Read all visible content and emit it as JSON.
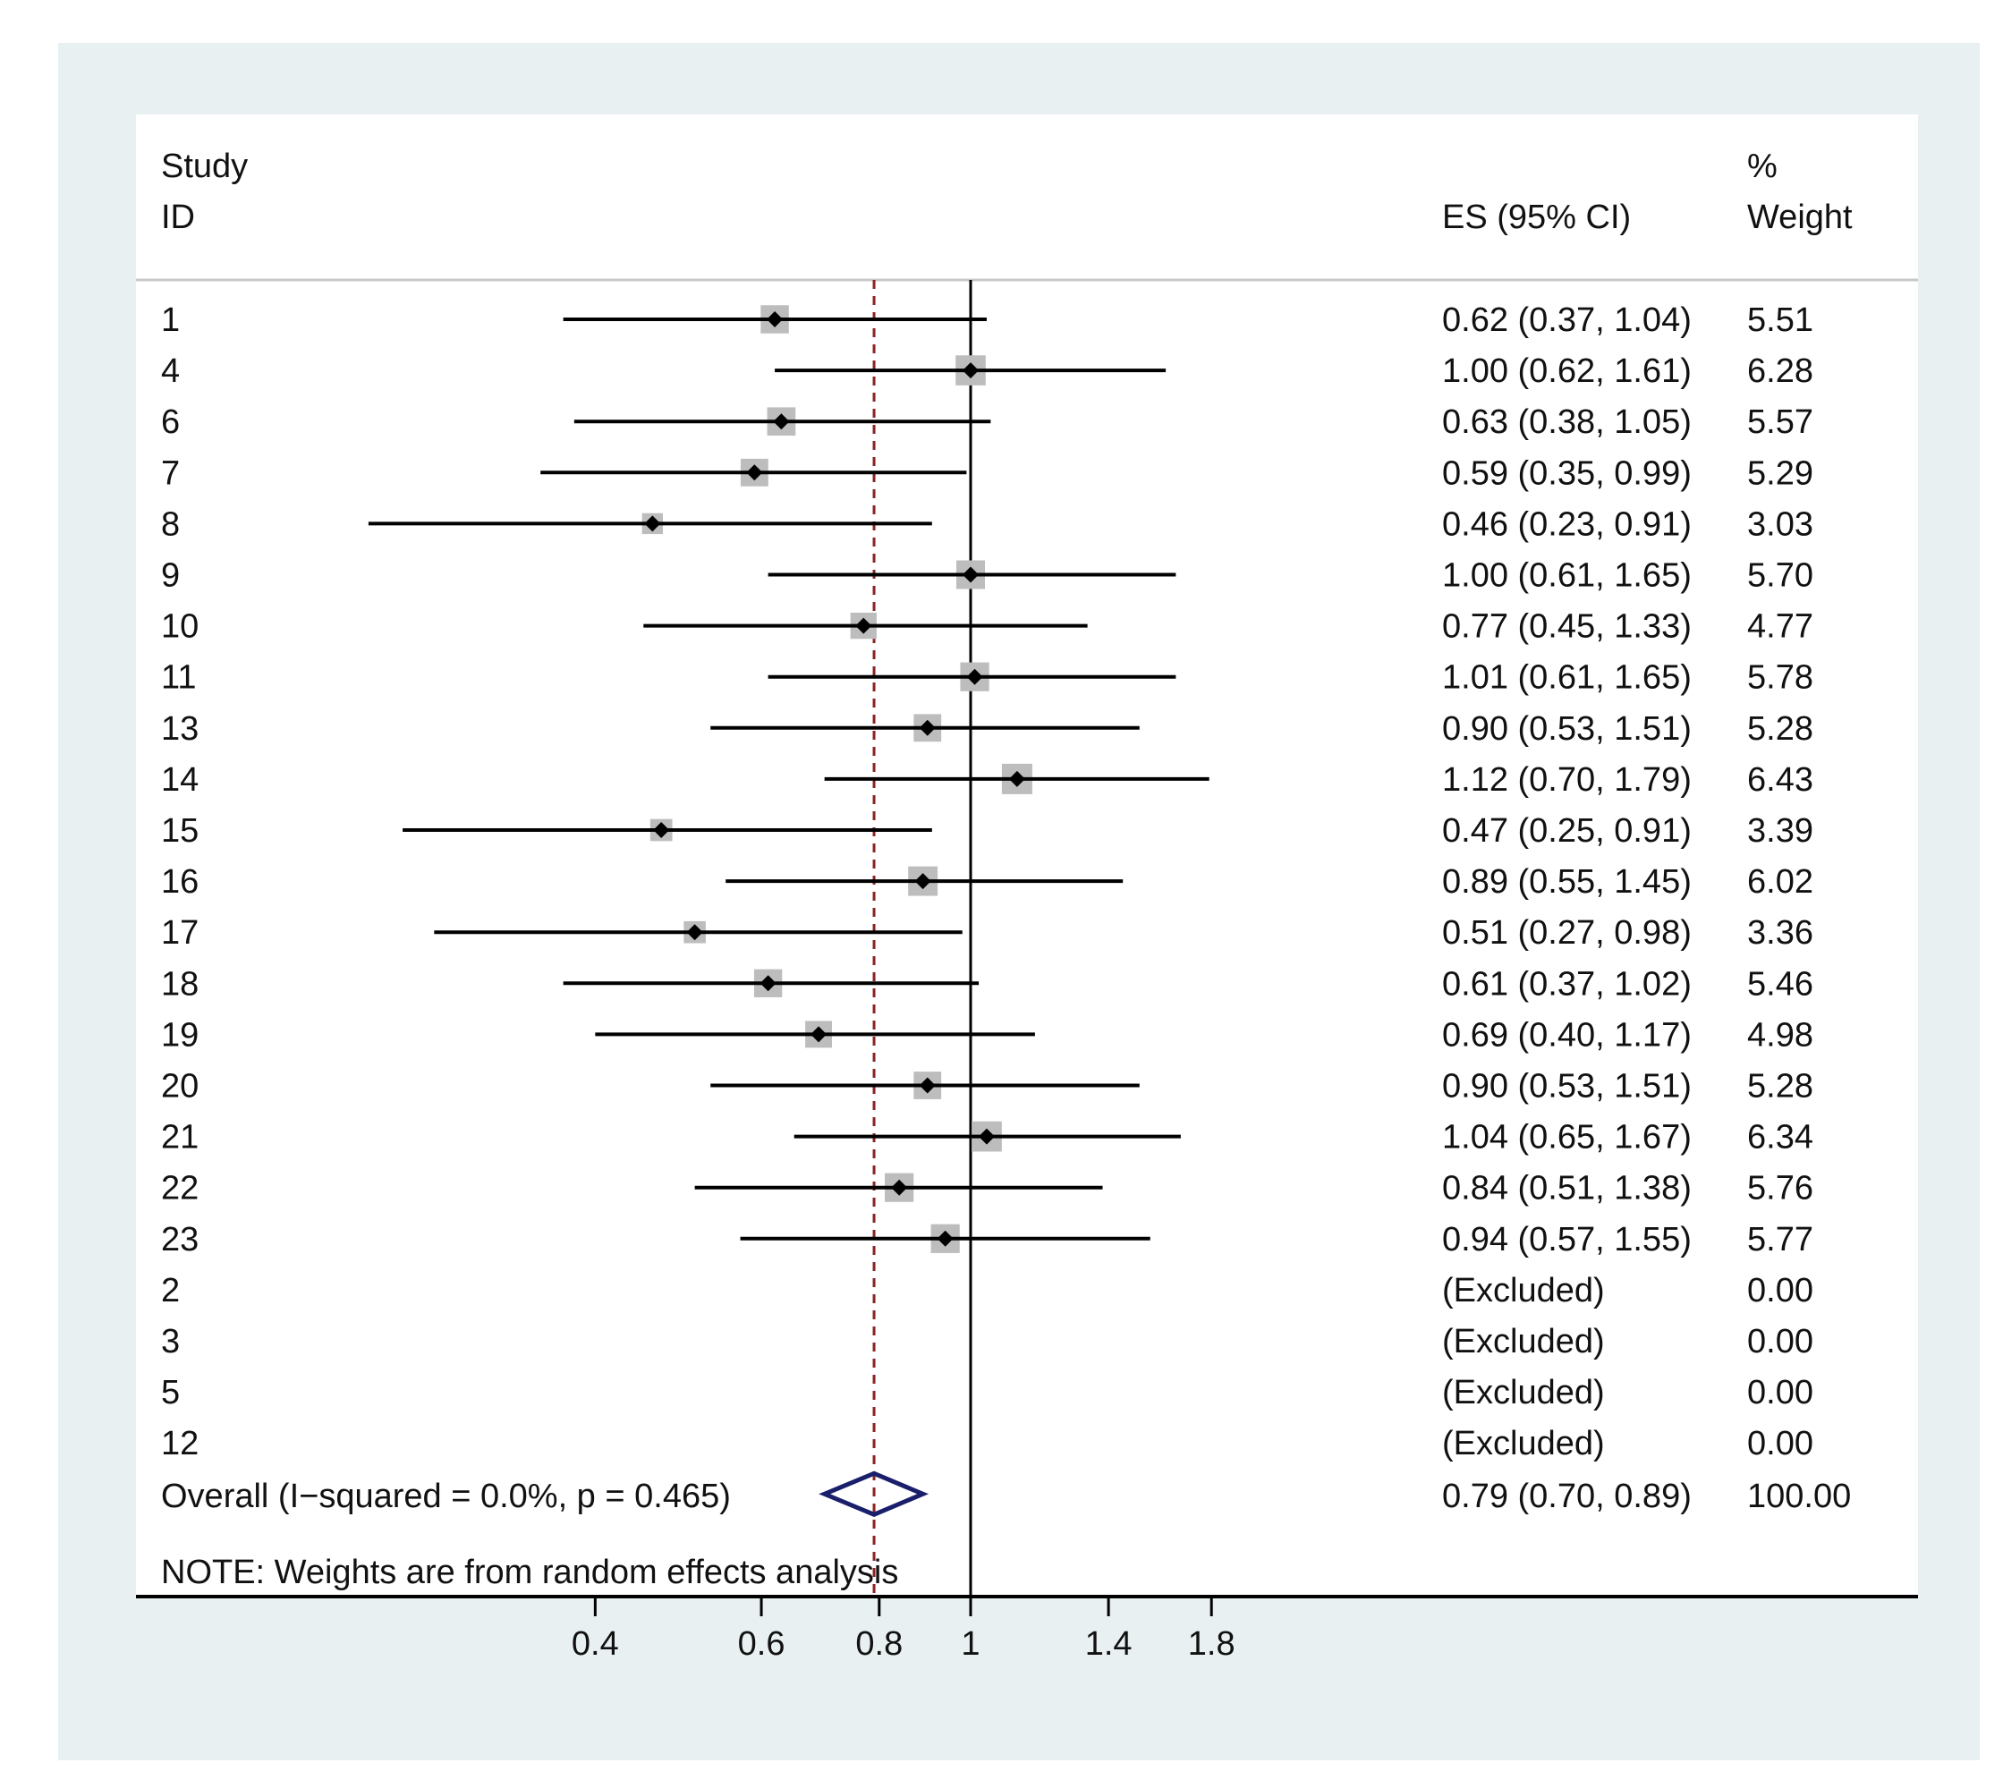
{
  "colors": {
    "outer_bg": "#e9f0f2",
    "plot_bg": "#ffffff",
    "box": "#bdbdbd",
    "point": "#000000",
    "ci": "#000000",
    "overall_diamond": "#1a1f6b",
    "overall_line": "#8b2323",
    "separator": "#c8c8c8"
  },
  "chart_data": {
    "type": "forest",
    "scale": "log",
    "headers": {
      "study_line1": "Study",
      "study_line2": "ID",
      "es": "ES (95% CI)",
      "weight_line1": "%",
      "weight_line2": "Weight"
    },
    "null_value": 1,
    "x_ticks": [
      {
        "value": 0.4,
        "label": "0.4"
      },
      {
        "value": 0.6,
        "label": "0.6"
      },
      {
        "value": 0.8,
        "label": "0.8"
      },
      {
        "value": 1,
        "label": "1"
      },
      {
        "value": 1.4,
        "label": "1.4"
      },
      {
        "value": 1.8,
        "label": "1.8"
      }
    ],
    "studies": [
      {
        "id": "1",
        "es": 0.62,
        "lo": 0.37,
        "hi": 1.04,
        "es_text": "0.62 (0.37, 1.04)",
        "weight": 5.51,
        "weight_text": "5.51"
      },
      {
        "id": "4",
        "es": 1.0,
        "lo": 0.62,
        "hi": 1.61,
        "es_text": "1.00 (0.62, 1.61)",
        "weight": 6.28,
        "weight_text": "6.28"
      },
      {
        "id": "6",
        "es": 0.63,
        "lo": 0.38,
        "hi": 1.05,
        "es_text": "0.63 (0.38, 1.05)",
        "weight": 5.57,
        "weight_text": "5.57"
      },
      {
        "id": "7",
        "es": 0.59,
        "lo": 0.35,
        "hi": 0.99,
        "es_text": "0.59 (0.35, 0.99)",
        "weight": 5.29,
        "weight_text": "5.29"
      },
      {
        "id": "8",
        "es": 0.46,
        "lo": 0.23,
        "hi": 0.91,
        "es_text": "0.46 (0.23, 0.91)",
        "weight": 3.03,
        "weight_text": "3.03"
      },
      {
        "id": "9",
        "es": 1.0,
        "lo": 0.61,
        "hi": 1.65,
        "es_text": "1.00 (0.61, 1.65)",
        "weight": 5.7,
        "weight_text": "5.70"
      },
      {
        "id": "10",
        "es": 0.77,
        "lo": 0.45,
        "hi": 1.33,
        "es_text": "0.77 (0.45, 1.33)",
        "weight": 4.77,
        "weight_text": "4.77"
      },
      {
        "id": "11",
        "es": 1.01,
        "lo": 0.61,
        "hi": 1.65,
        "es_text": "1.01 (0.61, 1.65)",
        "weight": 5.78,
        "weight_text": "5.78"
      },
      {
        "id": "13",
        "es": 0.9,
        "lo": 0.53,
        "hi": 1.51,
        "es_text": "0.90 (0.53, 1.51)",
        "weight": 5.28,
        "weight_text": "5.28"
      },
      {
        "id": "14",
        "es": 1.12,
        "lo": 0.7,
        "hi": 1.79,
        "es_text": "1.12 (0.70, 1.79)",
        "weight": 6.43,
        "weight_text": "6.43"
      },
      {
        "id": "15",
        "es": 0.47,
        "lo": 0.25,
        "hi": 0.91,
        "es_text": "0.47 (0.25, 0.91)",
        "weight": 3.39,
        "weight_text": "3.39"
      },
      {
        "id": "16",
        "es": 0.89,
        "lo": 0.55,
        "hi": 1.45,
        "es_text": "0.89 (0.55, 1.45)",
        "weight": 6.02,
        "weight_text": "6.02"
      },
      {
        "id": "17",
        "es": 0.51,
        "lo": 0.27,
        "hi": 0.98,
        "es_text": "0.51 (0.27, 0.98)",
        "weight": 3.36,
        "weight_text": "3.36"
      },
      {
        "id": "18",
        "es": 0.61,
        "lo": 0.37,
        "hi": 1.02,
        "es_text": "0.61 (0.37, 1.02)",
        "weight": 5.46,
        "weight_text": "5.46"
      },
      {
        "id": "19",
        "es": 0.69,
        "lo": 0.4,
        "hi": 1.17,
        "es_text": "0.69 (0.40, 1.17)",
        "weight": 4.98,
        "weight_text": "4.98"
      },
      {
        "id": "20",
        "es": 0.9,
        "lo": 0.53,
        "hi": 1.51,
        "es_text": "0.90 (0.53, 1.51)",
        "weight": 5.28,
        "weight_text": "5.28"
      },
      {
        "id": "21",
        "es": 1.04,
        "lo": 0.65,
        "hi": 1.67,
        "es_text": "1.04 (0.65, 1.67)",
        "weight": 6.34,
        "weight_text": "6.34"
      },
      {
        "id": "22",
        "es": 0.84,
        "lo": 0.51,
        "hi": 1.38,
        "es_text": "0.84 (0.51, 1.38)",
        "weight": 5.76,
        "weight_text": "5.76"
      },
      {
        "id": "23",
        "es": 0.94,
        "lo": 0.57,
        "hi": 1.55,
        "es_text": "0.94 (0.57, 1.55)",
        "weight": 5.77,
        "weight_text": "5.77"
      },
      {
        "id": "2",
        "es": null,
        "lo": null,
        "hi": null,
        "es_text": "(Excluded)",
        "weight": 0,
        "weight_text": "0.00"
      },
      {
        "id": "3",
        "es": null,
        "lo": null,
        "hi": null,
        "es_text": "(Excluded)",
        "weight": 0,
        "weight_text": "0.00"
      },
      {
        "id": "5",
        "es": null,
        "lo": null,
        "hi": null,
        "es_text": "(Excluded)",
        "weight": 0,
        "weight_text": "0.00"
      },
      {
        "id": "12",
        "es": null,
        "lo": null,
        "hi": null,
        "es_text": "(Excluded)",
        "weight": 0,
        "weight_text": "0.00"
      }
    ],
    "overall": {
      "label": "Overall  (I−squared = 0.0%, p = 0.465)",
      "es": 0.79,
      "lo": 0.7,
      "hi": 0.89,
      "es_text": "0.79 (0.70, 0.89)",
      "weight_text": "100.00"
    },
    "note": "NOTE: Weights are from random effects analysis"
  }
}
